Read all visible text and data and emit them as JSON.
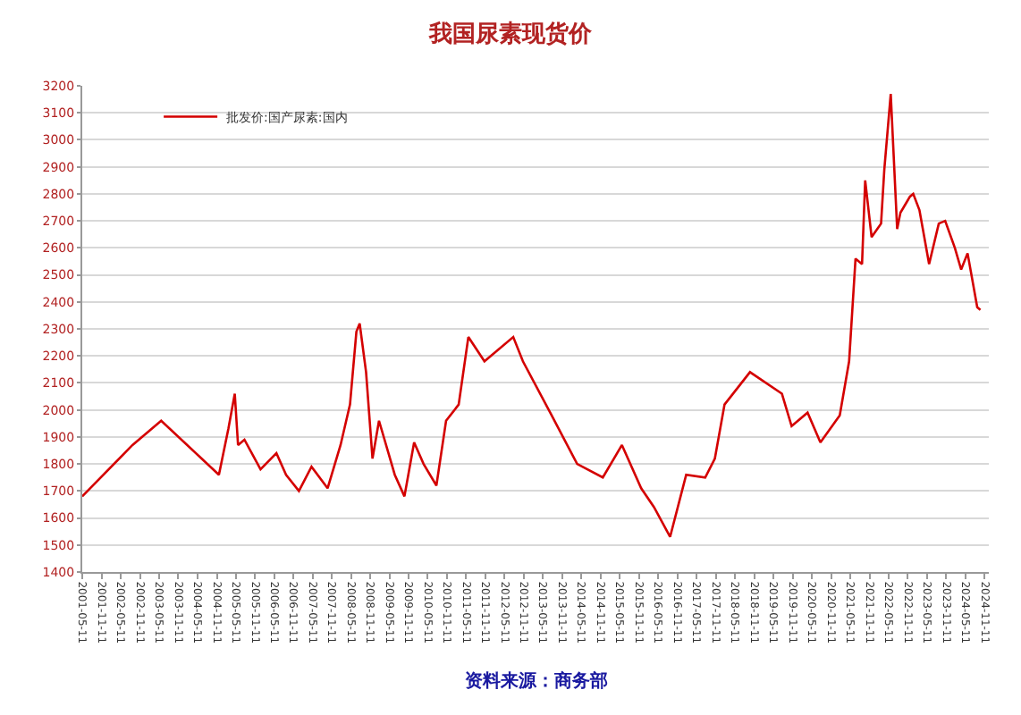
{
  "chart_data": {
    "type": "line",
    "title": "我国尿素现货价",
    "annotations": [
      "资料来源：商务部"
    ],
    "x": [
      "2001-05-11",
      "2002-09",
      "2003-06",
      "2004-12",
      "2005-03",
      "2005-05",
      "2005-06",
      "2005-08",
      "2006-01",
      "2006-06",
      "2006-09",
      "2007-01",
      "2007-05",
      "2007-10",
      "2008-02",
      "2008-05",
      "2008-07",
      "2008-08",
      "2008-10",
      "2008-12",
      "2009-02",
      "2009-07",
      "2009-10",
      "2010-01",
      "2010-04",
      "2010-08",
      "2010-11",
      "2011-03",
      "2011-06",
      "2011-11",
      "2012-08",
      "2012-11",
      "2013-08",
      "2014-04",
      "2014-12",
      "2015-06",
      "2015-12",
      "2016-04",
      "2016-09",
      "2017-02",
      "2017-08",
      "2017-11",
      "2018-02",
      "2018-10",
      "2019-08",
      "2019-11",
      "2020-04",
      "2020-08",
      "2021-02",
      "2021-05",
      "2021-07",
      "2021-09",
      "2021-10",
      "2021-12",
      "2022-03",
      "2022-04",
      "2022-06",
      "2022-08",
      "2022-09",
      "2022-12",
      "2023-01",
      "2023-03",
      "2023-06",
      "2023-09",
      "2023-11",
      "2024-02",
      "2024-04",
      "2024-06",
      "2024-09",
      "2024-10"
    ],
    "series": [
      {
        "name": "批发价:国产尿素:国内",
        "color": "#d40000",
        "values": [
          1680,
          1870,
          1960,
          1760,
          1930,
          2060,
          1870,
          1890,
          1780,
          1840,
          1760,
          1700,
          1790,
          1710,
          1870,
          2020,
          2290,
          2320,
          2140,
          1820,
          1960,
          1760,
          1680,
          1880,
          1800,
          1720,
          1960,
          2020,
          2270,
          2180,
          2270,
          2180,
          1980,
          1800,
          1750,
          1870,
          1710,
          1640,
          1530,
          1760,
          1750,
          1820,
          2020,
          2140,
          2060,
          1940,
          1990,
          1880,
          1980,
          2180,
          2560,
          2540,
          2850,
          2640,
          2690,
          2890,
          3170,
          2670,
          2730,
          2790,
          2800,
          2740,
          2540,
          2690,
          2700,
          2600,
          2520,
          2580,
          2380,
          2370
        ]
      }
    ],
    "xlim": [
      "2001-05-11",
      "2024-12-20"
    ],
    "xticks": [
      "2001-05-11",
      "2001-11-11",
      "2002-05-11",
      "2002-11-11",
      "2003-05-11",
      "2003-11-11",
      "2004-05-11",
      "2004-11-11",
      "2005-05-11",
      "2005-11-11",
      "2006-05-11",
      "2006-11-11",
      "2007-05-11",
      "2007-11-11",
      "2008-05-11",
      "2008-11-11",
      "2009-05-11",
      "2009-11-11",
      "2010-05-11",
      "2010-11-11",
      "2011-05-11",
      "2011-11-11",
      "2012-05-11",
      "2012-11-11",
      "2013-05-11",
      "2013-11-11",
      "2014-05-11",
      "2014-11-11",
      "2015-05-11",
      "2015-11-11",
      "2016-05-11",
      "2016-11-11",
      "2017-05-11",
      "2017-11-11",
      "2018-05-11",
      "2018-11-11",
      "2019-05-11",
      "2019-11-11",
      "2020-05-11",
      "2020-11-11",
      "2021-05-11",
      "2021-11-11",
      "2022-05-11",
      "2022-11-11",
      "2023-05-11",
      "2023-11-11",
      "2024-05-11",
      "2024-11-11"
    ],
    "ylim": [
      1400,
      3200
    ],
    "yticks": [
      1400,
      1500,
      1600,
      1700,
      1800,
      1900,
      2000,
      2100,
      2200,
      2300,
      2400,
      2500,
      2600,
      2700,
      2800,
      2900,
      3000,
      3100,
      3200
    ],
    "grid": "y",
    "legend": "top left",
    "marker": "none",
    "line_style": "solid"
  }
}
